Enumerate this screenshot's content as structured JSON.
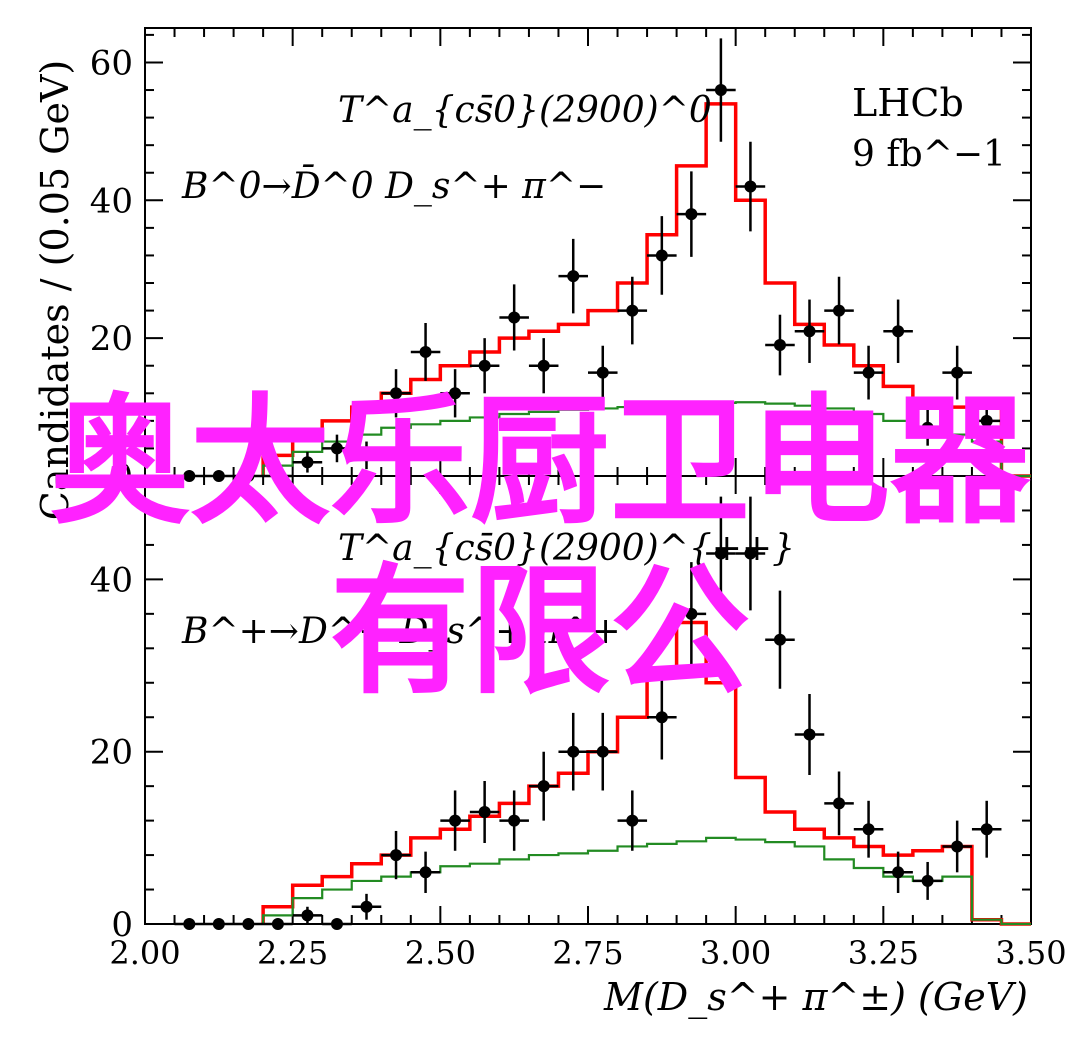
{
  "watermark": {
    "line1": "奥太乐厨卫电器",
    "line2": "有限公",
    "color": "#ff22ff"
  },
  "chart_data": [
    {
      "type": "line",
      "panel": "top",
      "ylabel": "Candidates / (0.05 GeV)",
      "ylim": [
        0,
        65
      ],
      "xlim": [
        2.0,
        3.5
      ],
      "yticks": [
        "0",
        "20",
        "40",
        "60"
      ],
      "annotation_state": "T^a_{cs̄0}(2900)^0",
      "annotation_decay": "B^0→D̄^0 D_s^+ π^−",
      "experiment": "LHCb",
      "luminosity": "9 fb^−1",
      "data_points": {
        "x": [
          2.075,
          2.125,
          2.175,
          2.225,
          2.275,
          2.325,
          2.375,
          2.425,
          2.475,
          2.525,
          2.575,
          2.625,
          2.675,
          2.725,
          2.775,
          2.825,
          2.875,
          2.925,
          2.975,
          3.025,
          3.075,
          3.125,
          3.175,
          3.225,
          3.275,
          3.325,
          3.375,
          3.425
        ],
        "y": [
          0,
          0,
          0,
          0,
          2,
          4,
          3,
          12,
          18,
          12,
          16,
          23,
          16,
          29,
          15,
          24,
          32,
          38,
          56,
          42,
          19,
          21,
          24,
          15,
          21,
          7,
          15,
          8
        ],
        "yerr": [
          0,
          0,
          0,
          0,
          1.5,
          2,
          2,
          3.5,
          4.2,
          3.5,
          4,
          4.8,
          4,
          5.4,
          3.9,
          4.9,
          5.7,
          6.2,
          7.5,
          6.5,
          4.4,
          4.6,
          4.9,
          3.9,
          4.6,
          2.6,
          3.9,
          2.8
        ]
      },
      "series": [
        {
          "name": "",
          "color": "#ff0000",
          "bin_edges": [
            2.2,
            2.25,
            2.3,
            2.35,
            2.4,
            2.45,
            2.5,
            2.55,
            2.6,
            2.65,
            2.7,
            2.75,
            2.8,
            2.85,
            2.9,
            2.95,
            3.0,
            3.05,
            3.1,
            3.15,
            3.2,
            3.25,
            3.3,
            3.35,
            3.4,
            3.45
          ],
          "values": [
            3,
            6,
            8,
            10,
            12,
            14,
            16,
            18,
            20,
            21,
            22,
            24,
            28,
            35,
            45,
            54,
            40,
            28,
            22,
            19,
            16,
            13,
            11,
            10,
            11,
            0
          ]
        },
        {
          "name": "",
          "color": "#228b22",
          "bin_edges": [
            2.2,
            2.25,
            2.3,
            2.35,
            2.4,
            2.45,
            2.5,
            2.55,
            2.6,
            2.65,
            2.7,
            2.75,
            2.8,
            2.85,
            2.9,
            2.95,
            3.0,
            3.05,
            3.1,
            3.15,
            3.2,
            3.25,
            3.3,
            3.35,
            3.4,
            3.45
          ],
          "values": [
            1.5,
            3.5,
            5,
            6,
            7,
            7.5,
            8,
            8.5,
            9,
            9.3,
            9.6,
            9.8,
            10,
            10.2,
            10.4,
            10.6,
            10.7,
            10.5,
            10.2,
            9.8,
            9,
            8,
            7,
            6,
            5,
            0
          ]
        }
      ]
    },
    {
      "type": "line",
      "panel": "bottom",
      "ylim": [
        0,
        52
      ],
      "xlim": [
        2.0,
        3.5
      ],
      "yticks": [
        "0",
        "20",
        "40"
      ],
      "xticks": [
        "2.00",
        "2.25",
        "2.50",
        "2.75",
        "3.00",
        "3.25",
        "3.50"
      ],
      "xlabel": "M(D_s^+ π^±) (GeV)",
      "annotation_state": "T^a_{cs̄0}(2900)^{++}",
      "annotation_decay": "B^+→D^− D_s^+ π^+",
      "data_points": {
        "x": [
          2.075,
          2.125,
          2.175,
          2.225,
          2.275,
          2.325,
          2.375,
          2.425,
          2.475,
          2.525,
          2.575,
          2.625,
          2.675,
          2.725,
          2.775,
          2.825,
          2.875,
          2.925,
          2.975,
          3.025,
          3.075,
          3.125,
          3.175,
          3.225,
          3.275,
          3.325,
          3.375,
          3.425
        ],
        "y": [
          0,
          0,
          0,
          0,
          1,
          0,
          2,
          8,
          6,
          12,
          13,
          12,
          16,
          20,
          20,
          12,
          24,
          36,
          43,
          43,
          33,
          22,
          14,
          11,
          6,
          5,
          9,
          11
        ],
        "yerr": [
          0,
          0,
          0,
          0,
          1,
          0.5,
          1.5,
          2.8,
          2.4,
          3.5,
          3.6,
          3.5,
          4,
          4.5,
          4.5,
          3.5,
          4.9,
          6,
          6.6,
          6.6,
          5.7,
          4.7,
          3.7,
          3.3,
          2.4,
          2.2,
          3,
          3.3
        ]
      },
      "series": [
        {
          "name": "",
          "color": "#ff0000",
          "bin_edges": [
            2.2,
            2.25,
            2.3,
            2.35,
            2.4,
            2.45,
            2.5,
            2.55,
            2.6,
            2.65,
            2.7,
            2.75,
            2.8,
            2.85,
            2.9,
            2.95,
            3.0,
            3.05,
            3.1,
            3.15,
            3.2,
            3.25,
            3.3,
            3.35,
            3.4,
            3.45
          ],
          "values": [
            2,
            4.5,
            5.5,
            7,
            8,
            10,
            11,
            12.5,
            14,
            16,
            17.5,
            20,
            24,
            29,
            35,
            28,
            17,
            13,
            11,
            10,
            9,
            8,
            8.5,
            9,
            0.5,
            0
          ]
        },
        {
          "name": "",
          "color": "#228b22",
          "bin_edges": [
            2.2,
            2.25,
            2.3,
            2.35,
            2.4,
            2.45,
            2.5,
            2.55,
            2.6,
            2.65,
            2.7,
            2.75,
            2.8,
            2.85,
            2.9,
            2.95,
            3.0,
            3.05,
            3.1,
            3.15,
            3.2,
            3.25,
            3.3,
            3.35,
            3.4,
            3.45
          ],
          "values": [
            1,
            3,
            4,
            5,
            5.5,
            6,
            6.7,
            7,
            7.5,
            8,
            8.2,
            8.5,
            9,
            9.3,
            9.6,
            10,
            9.8,
            9.5,
            9,
            7.5,
            6.5,
            5.5,
            5,
            5.5,
            0.5,
            0
          ]
        }
      ]
    }
  ]
}
